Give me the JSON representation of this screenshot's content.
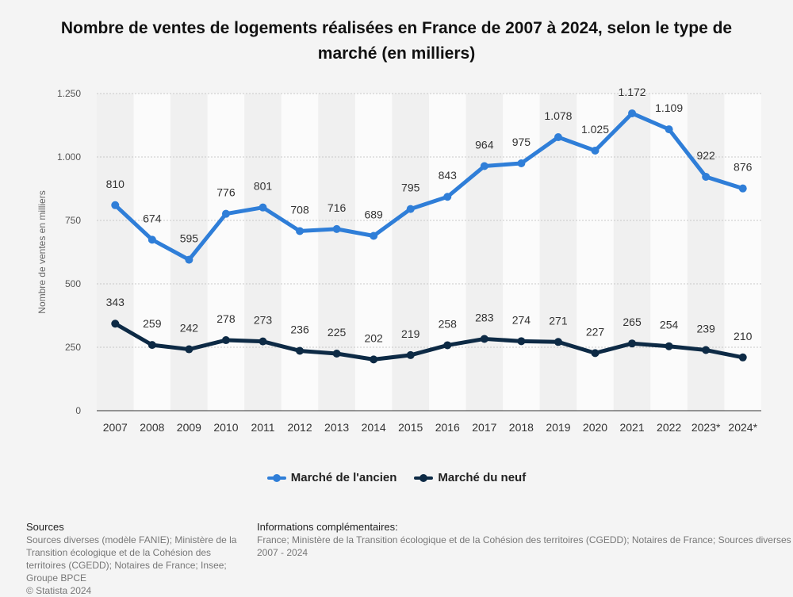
{
  "title": "Nombre de ventes de logements réalisées en France de 2007 à 2024, selon le type de marché (en milliers)",
  "chart_data": {
    "type": "line",
    "title": "Nombre de ventes de logements réalisées en France de 2007 à 2024, selon le type de marché (en milliers)",
    "xlabel": "",
    "ylabel": "Nombre de ventes en milliers",
    "categories": [
      "2007",
      "2008",
      "2009",
      "2010",
      "2011",
      "2012",
      "2013",
      "2014",
      "2015",
      "2016",
      "2017",
      "2018",
      "2019",
      "2020",
      "2021",
      "2022",
      "2023*",
      "2024*"
    ],
    "y_ticks": [
      0,
      250,
      500,
      750,
      1000,
      1250
    ],
    "y_tick_labels": [
      "0",
      "250",
      "500",
      "750",
      "1.000",
      "1.250"
    ],
    "ylim": [
      0,
      1250
    ],
    "grid": true,
    "legend_position": "bottom",
    "series": [
      {
        "name": "Marché de l'ancien",
        "color": "#2f7ed8",
        "values": [
          810,
          674,
          595,
          776,
          801,
          708,
          716,
          689,
          795,
          843,
          964,
          975,
          1078,
          1025,
          1172,
          1109,
          922,
          876
        ],
        "labels": [
          "810",
          "674",
          "595",
          "776",
          "801",
          "708",
          "716",
          "689",
          "795",
          "843",
          "964",
          "975",
          "1.078",
          "1.025",
          "1.172",
          "1.109",
          "922",
          "876"
        ]
      },
      {
        "name": "Marché du neuf",
        "color": "#0d2a45",
        "values": [
          343,
          259,
          242,
          278,
          273,
          236,
          225,
          202,
          219,
          258,
          283,
          274,
          271,
          227,
          265,
          254,
          239,
          210
        ],
        "labels": [
          "343",
          "259",
          "242",
          "278",
          "273",
          "236",
          "225",
          "202",
          "219",
          "258",
          "283",
          "274",
          "271",
          "227",
          "265",
          "254",
          "239",
          "210"
        ]
      }
    ]
  },
  "legend": {
    "items": [
      {
        "label": "Marché de l'ancien",
        "color": "#2f7ed8"
      },
      {
        "label": "Marché du neuf",
        "color": "#0d2a45"
      }
    ]
  },
  "footer": {
    "sources_header": "Sources",
    "sources_text": "Sources diverses (modèle FANIE); Ministère de la Transition écologique et de la Cohésion des territoires (CGEDD); Notaires de France; Insee; Groupe BPCE",
    "copyright": "© Statista 2024",
    "info_header": "Informations complémentaires:",
    "info_text": "France; Ministère de la Transition écologique et de la Cohésion des territoires (CGEDD); Notaires de France; Sources diverses",
    "info_period": "2007 - 2024"
  }
}
